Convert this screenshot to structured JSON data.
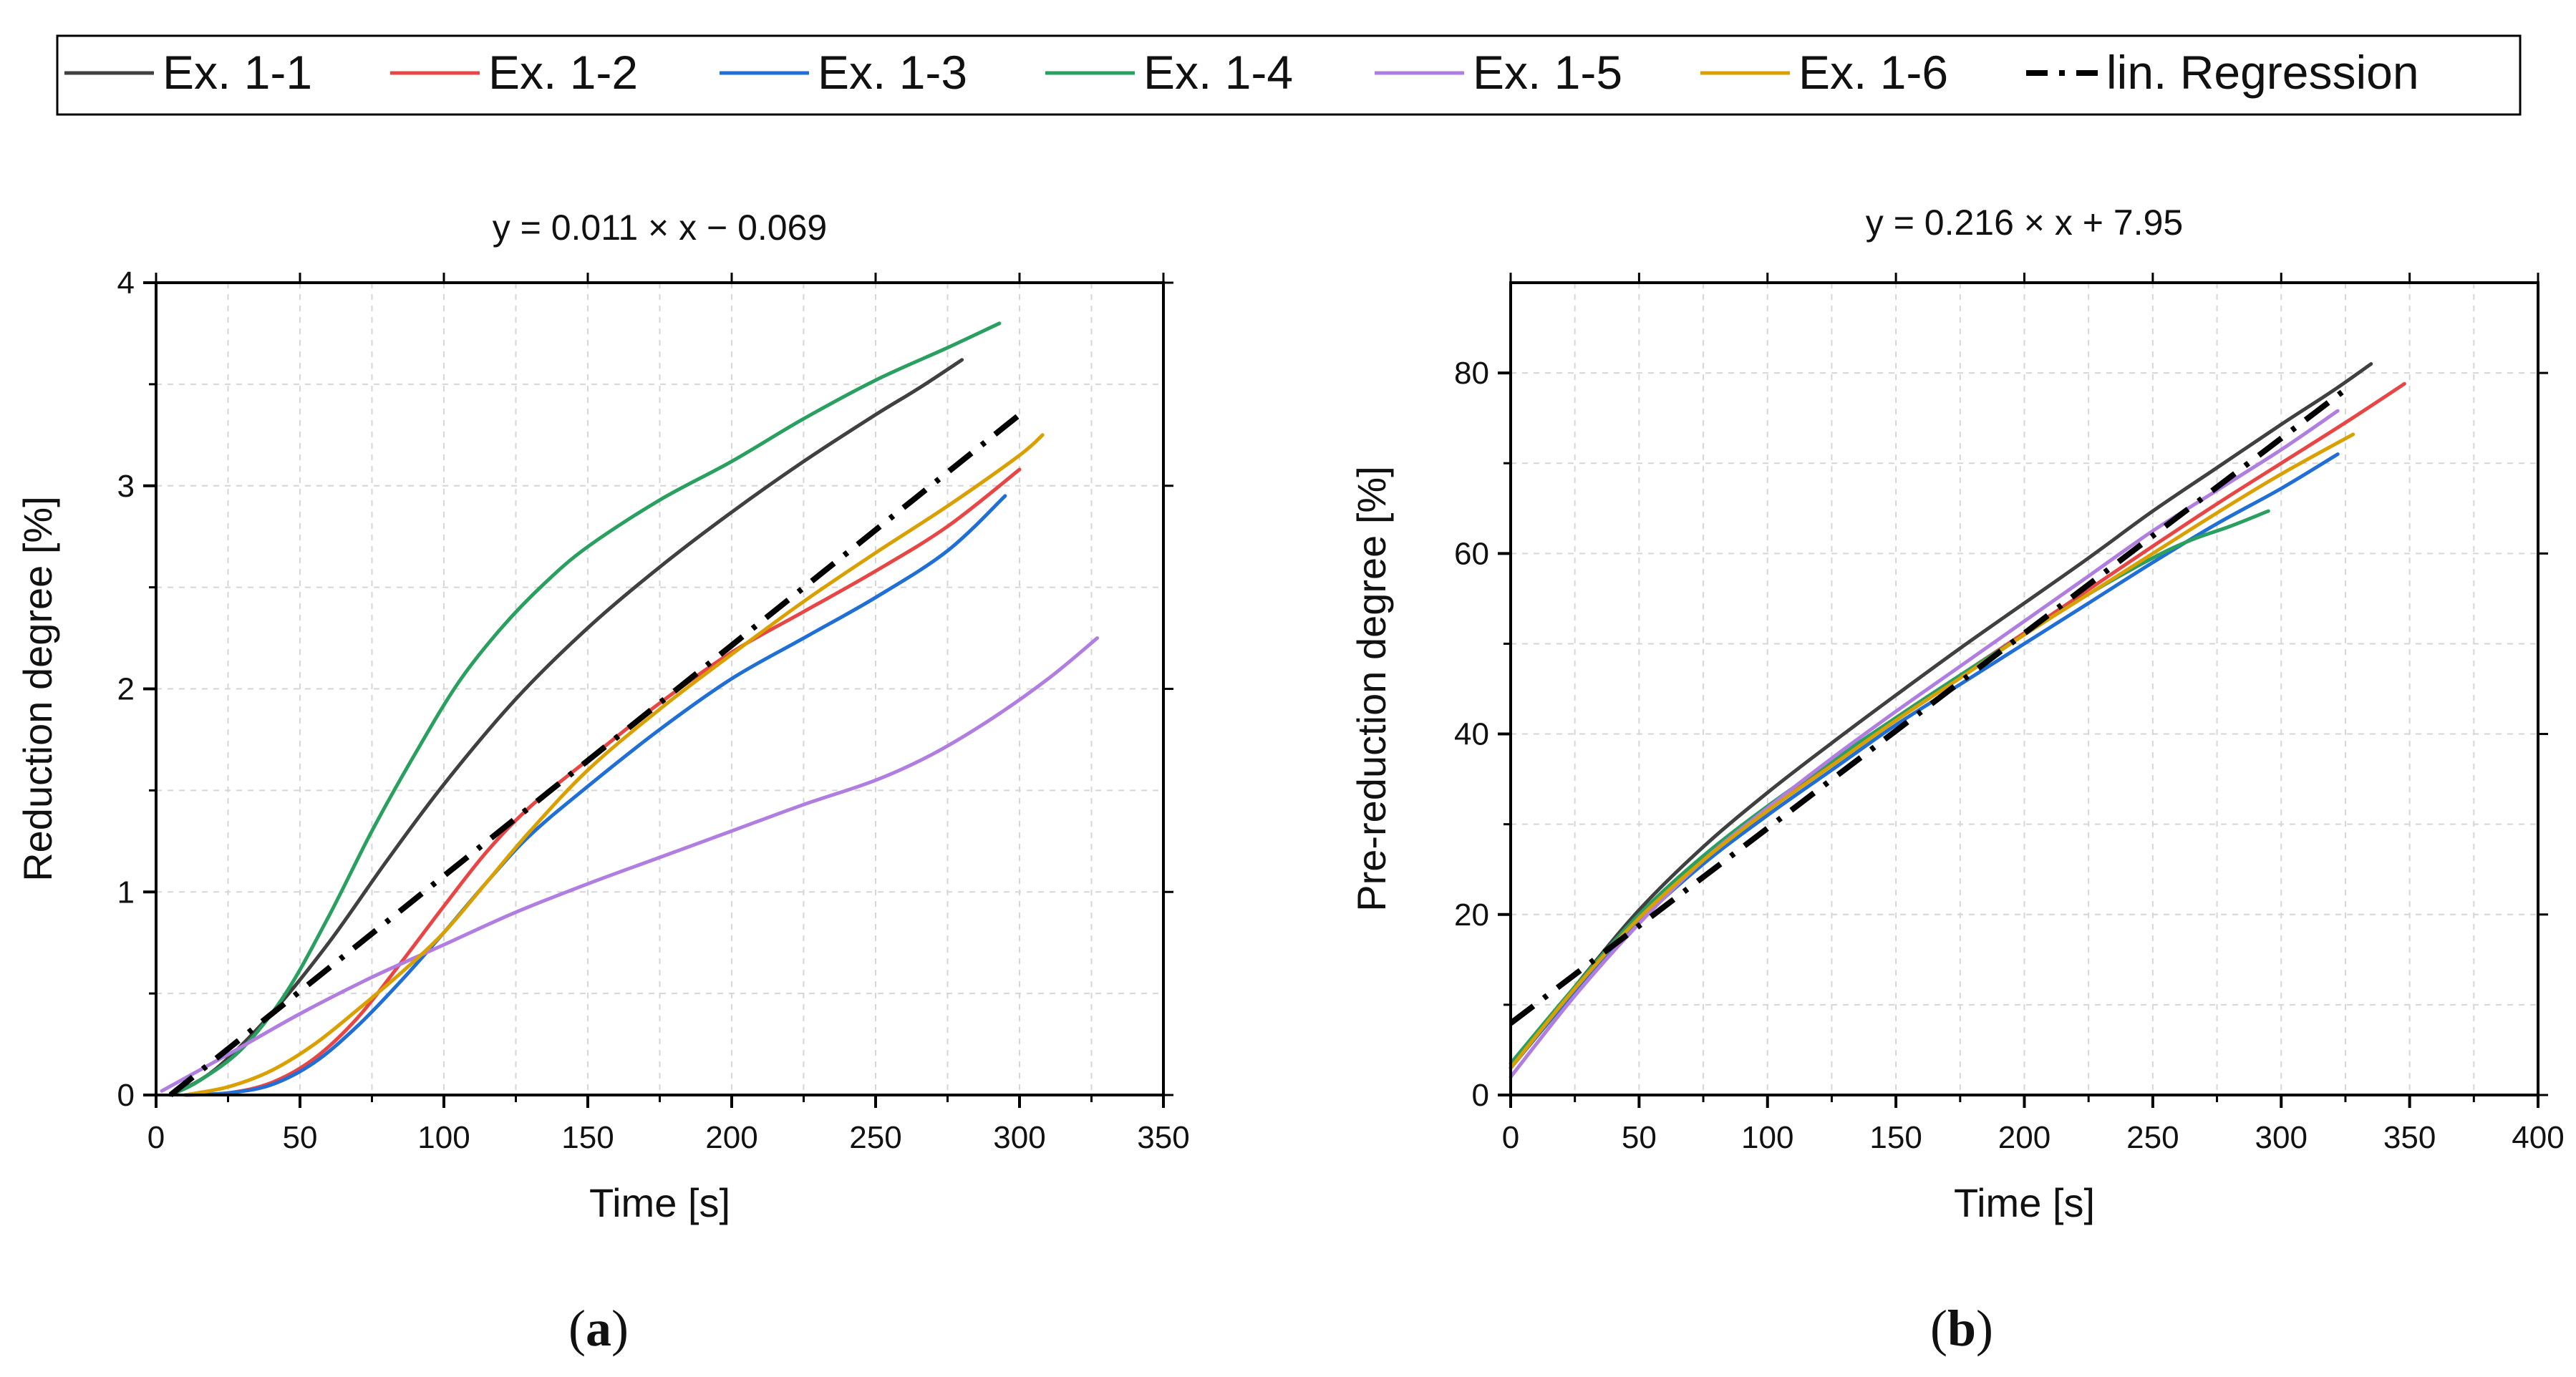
{
  "legend": {
    "entries": [
      {
        "label": "Ex. 1-1",
        "color": "#404040",
        "dash": "solid"
      },
      {
        "label": "Ex. 1-2",
        "color": "#e84545",
        "dash": "solid"
      },
      {
        "label": "Ex. 1-3",
        "color": "#1f6fd6",
        "dash": "solid"
      },
      {
        "label": "Ex. 1-4",
        "color": "#2aa060",
        "dash": "solid"
      },
      {
        "label": "Ex. 1-5",
        "color": "#b07ee0",
        "dash": "solid"
      },
      {
        "label": "Ex. 1-6",
        "color": "#d9a000",
        "dash": "solid"
      },
      {
        "label": "lin. Regression",
        "color": "#000000",
        "dash": "dashdot"
      }
    ]
  },
  "chart_data": [
    {
      "type": "line",
      "panel": "a",
      "caption": "(a)",
      "caption_letter": "a",
      "title": "y = 0.011 × x − 0.069",
      "xlabel": "Time [s]",
      "ylabel": "Reduction degree [%]",
      "xlim": [
        0,
        350
      ],
      "ylim": [
        0,
        4
      ],
      "xticks": [
        0,
        50,
        100,
        150,
        200,
        250,
        300,
        350
      ],
      "yticks": [
        0,
        1,
        2,
        3,
        4
      ],
      "grid": true,
      "series": [
        {
          "name": "Ex. 1-1",
          "x": [
            5,
            20,
            40,
            60,
            80,
            100,
            125,
            150,
            175,
            200,
            225,
            250,
            265,
            280
          ],
          "y": [
            0,
            0.12,
            0.4,
            0.75,
            1.15,
            1.53,
            1.95,
            2.3,
            2.6,
            2.87,
            3.12,
            3.35,
            3.48,
            3.62
          ]
        },
        {
          "name": "Ex. 1-2",
          "x": [
            10,
            25,
            40,
            55,
            70,
            85,
            100,
            115,
            130,
            150,
            175,
            200,
            225,
            250,
            275,
            300
          ],
          "y": [
            0,
            0.01,
            0.06,
            0.18,
            0.38,
            0.65,
            0.93,
            1.2,
            1.42,
            1.65,
            1.93,
            2.18,
            2.38,
            2.58,
            2.8,
            3.08
          ]
        },
        {
          "name": "Ex. 1-3",
          "x": [
            10,
            25,
            40,
            55,
            70,
            85,
            100,
            115,
            130,
            150,
            175,
            200,
            225,
            250,
            275,
            295
          ],
          "y": [
            0,
            0.01,
            0.05,
            0.16,
            0.34,
            0.56,
            0.8,
            1.05,
            1.28,
            1.52,
            1.8,
            2.05,
            2.25,
            2.45,
            2.68,
            2.95
          ]
        },
        {
          "name": "Ex. 1-4",
          "x": [
            5,
            15,
            30,
            45,
            60,
            75,
            90,
            105,
            120,
            135,
            150,
            175,
            200,
            225,
            250,
            275,
            293
          ],
          "y": [
            0,
            0.07,
            0.23,
            0.5,
            0.88,
            1.3,
            1.68,
            2.03,
            2.3,
            2.52,
            2.7,
            2.93,
            3.12,
            3.33,
            3.52,
            3.68,
            3.8
          ]
        },
        {
          "name": "Ex. 1-5",
          "x": [
            2,
            25,
            50,
            75,
            100,
            125,
            150,
            175,
            200,
            225,
            250,
            270,
            290,
            310,
            327
          ],
          "y": [
            0.02,
            0.2,
            0.4,
            0.58,
            0.74,
            0.9,
            1.04,
            1.17,
            1.3,
            1.43,
            1.55,
            1.68,
            1.85,
            2.05,
            2.25
          ]
        },
        {
          "name": "Ex. 1-6",
          "x": [
            10,
            25,
            40,
            55,
            70,
            85,
            100,
            115,
            130,
            150,
            175,
            200,
            225,
            250,
            275,
            300,
            308
          ],
          "y": [
            0,
            0.04,
            0.12,
            0.25,
            0.42,
            0.6,
            0.8,
            1.05,
            1.3,
            1.6,
            1.9,
            2.17,
            2.43,
            2.67,
            2.9,
            3.15,
            3.25
          ]
        },
        {
          "name": "lin. Regression",
          "x": [
            5,
            300
          ],
          "y": [
            0,
            3.35
          ]
        }
      ]
    },
    {
      "type": "line",
      "panel": "b",
      "caption": "(b)",
      "caption_letter": "b",
      "title": "y = 0.216 × x + 7.95",
      "xlabel": "Time [s]",
      "ylabel": "Pre-reduction degree [%]",
      "xlim": [
        0,
        400
      ],
      "ylim": [
        0,
        90
      ],
      "xticks": [
        0,
        50,
        100,
        150,
        200,
        250,
        300,
        350,
        400
      ],
      "yticks": [
        0,
        20,
        40,
        60,
        80
      ],
      "grid": true,
      "series": [
        {
          "name": "Ex. 1-1",
          "x": [
            0,
            25,
            50,
            75,
            100,
            125,
            150,
            175,
            200,
            225,
            250,
            275,
            300,
            320,
            335
          ],
          "y": [
            3,
            12,
            20.5,
            27.5,
            33.5,
            39,
            44.3,
            49.5,
            54.5,
            59.5,
            64.7,
            69.5,
            74.3,
            78,
            81
          ]
        },
        {
          "name": "Ex. 1-2",
          "x": [
            0,
            25,
            50,
            75,
            100,
            125,
            150,
            175,
            200,
            225,
            250,
            275,
            300,
            325,
            348
          ],
          "y": [
            3,
            11.5,
            19.5,
            26,
            31.5,
            36.8,
            41.8,
            46.5,
            51.2,
            56,
            60.8,
            65.5,
            70,
            74.5,
            78.8
          ]
        },
        {
          "name": "Ex. 1-3",
          "x": [
            0,
            25,
            50,
            75,
            100,
            125,
            150,
            175,
            200,
            225,
            250,
            275,
            300,
            322
          ],
          "y": [
            3,
            11.5,
            19.2,
            25.6,
            31,
            36,
            41,
            45.5,
            50,
            54.5,
            59,
            63.3,
            67.2,
            71
          ]
        },
        {
          "name": "Ex. 1-4",
          "x": [
            0,
            25,
            50,
            75,
            100,
            125,
            150,
            175,
            200,
            225,
            250,
            265,
            280,
            295
          ],
          "y": [
            3.5,
            12,
            20,
            26.5,
            32,
            37,
            41.8,
            46.5,
            51,
            55.5,
            59.5,
            61.5,
            63,
            64.7
          ]
        },
        {
          "name": "Ex. 1-5",
          "x": [
            0,
            25,
            50,
            75,
            100,
            125,
            150,
            175,
            200,
            225,
            250,
            275,
            300,
            322
          ],
          "y": [
            2,
            11,
            19,
            26,
            31.8,
            37.3,
            42.5,
            47.5,
            52.5,
            57.5,
            62.5,
            67,
            71.5,
            75.8
          ]
        },
        {
          "name": "Ex. 1-6",
          "x": [
            0,
            25,
            50,
            75,
            100,
            125,
            150,
            175,
            200,
            225,
            250,
            275,
            300,
            328
          ],
          "y": [
            3,
            11.8,
            19.6,
            26,
            31.5,
            36.5,
            41.5,
            46.2,
            51,
            55.5,
            60,
            64.5,
            68.8,
            73.2
          ]
        },
        {
          "name": "lin. Regression",
          "x": [
            0,
            325
          ],
          "y": [
            7.95,
            78.15
          ]
        }
      ]
    }
  ]
}
